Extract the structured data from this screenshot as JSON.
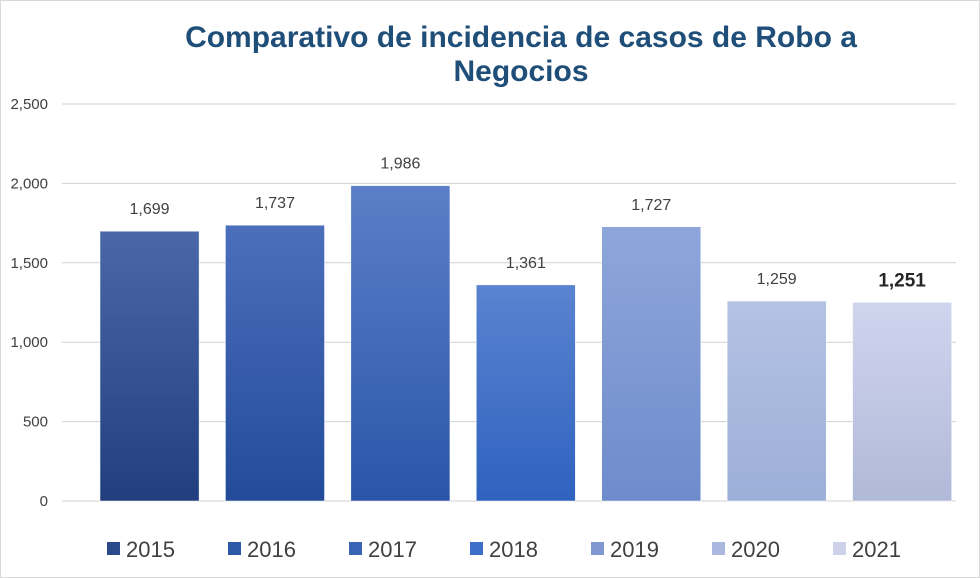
{
  "chart_data": {
    "type": "bar",
    "title": "Comparativo de incidencia de casos de Robo a Negocios",
    "categories": [
      "2015",
      "2016",
      "2017",
      "2018",
      "2019",
      "2020",
      "2021"
    ],
    "values": [
      1699,
      1737,
      1986,
      1361,
      1727,
      1259,
      1251
    ],
    "value_labels": [
      "1,699",
      "1,737",
      "1,986",
      "1,361",
      "1,727",
      "1,259",
      "1,251"
    ],
    "emphasized_index": 6,
    "ylim": [
      0,
      2500
    ],
    "yticks": [
      0,
      500,
      1000,
      1500,
      2000,
      2500
    ],
    "ytick_labels": [
      "0",
      "500",
      "1,000",
      "1,500",
      "2,000",
      "2,500"
    ],
    "xlabel": "",
    "ylabel": "",
    "grid": true,
    "legend_position": "bottom",
    "colors": [
      {
        "top": "#4a68a8",
        "bottom": "#213f7e"
      },
      {
        "top": "#4b6fbb",
        "bottom": "#234b99"
      },
      {
        "top": "#5b7fc8",
        "bottom": "#2a55a8"
      },
      {
        "top": "#5a83d0",
        "bottom": "#2f62bf"
      },
      {
        "top": "#8ea6da",
        "bottom": "#6e8ccc"
      },
      {
        "top": "#b4c2e3",
        "bottom": "#9cafd8"
      },
      {
        "top": "#d0d5ee",
        "bottom": "#b0b9d8"
      }
    ],
    "legend_swatch_colors": [
      "#2a4a8a",
      "#2d58a8",
      "#3a65b6",
      "#3d6fca",
      "#8098d2",
      "#aab8df",
      "#cdd2ea"
    ]
  }
}
